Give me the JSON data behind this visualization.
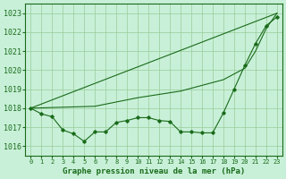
{
  "title": "Graphe pression niveau de la mer (hPa)",
  "bg_color": "#c8f0d8",
  "grid_color": "#99cc99",
  "line_color": "#1a6b1a",
  "xlim": [
    -0.5,
    23.5
  ],
  "ylim": [
    1015.5,
    1023.5
  ],
  "yticks": [
    1016,
    1017,
    1018,
    1019,
    1020,
    1021,
    1022,
    1023
  ],
  "xticks": [
    0,
    1,
    2,
    3,
    4,
    5,
    6,
    7,
    8,
    9,
    10,
    11,
    12,
    13,
    14,
    15,
    16,
    17,
    18,
    19,
    20,
    21,
    22,
    23
  ],
  "series_markers": {
    "x": [
      0,
      1,
      2,
      3,
      4,
      5,
      6,
      7,
      8,
      9,
      10,
      11,
      12,
      13,
      14,
      15,
      16,
      17,
      18,
      19,
      20,
      21,
      22,
      23
    ],
    "y": [
      1018.0,
      1017.7,
      1017.55,
      1016.85,
      1016.65,
      1016.25,
      1016.75,
      1016.75,
      1017.25,
      1017.35,
      1017.5,
      1017.5,
      1017.35,
      1017.3,
      1016.75,
      1016.75,
      1016.7,
      1016.7,
      1017.75,
      1019.0,
      1020.25,
      1021.4,
      1022.35,
      1022.8
    ]
  },
  "series_straight": {
    "x": [
      0,
      23
    ],
    "y": [
      1018.0,
      1023.0
    ]
  },
  "series_curved": {
    "x": [
      0,
      6,
      10,
      14,
      18,
      19,
      20,
      21,
      22,
      23
    ],
    "y": [
      1018.0,
      1018.1,
      1018.55,
      1018.9,
      1019.5,
      1019.8,
      1020.1,
      1021.0,
      1022.2,
      1023.0
    ]
  }
}
